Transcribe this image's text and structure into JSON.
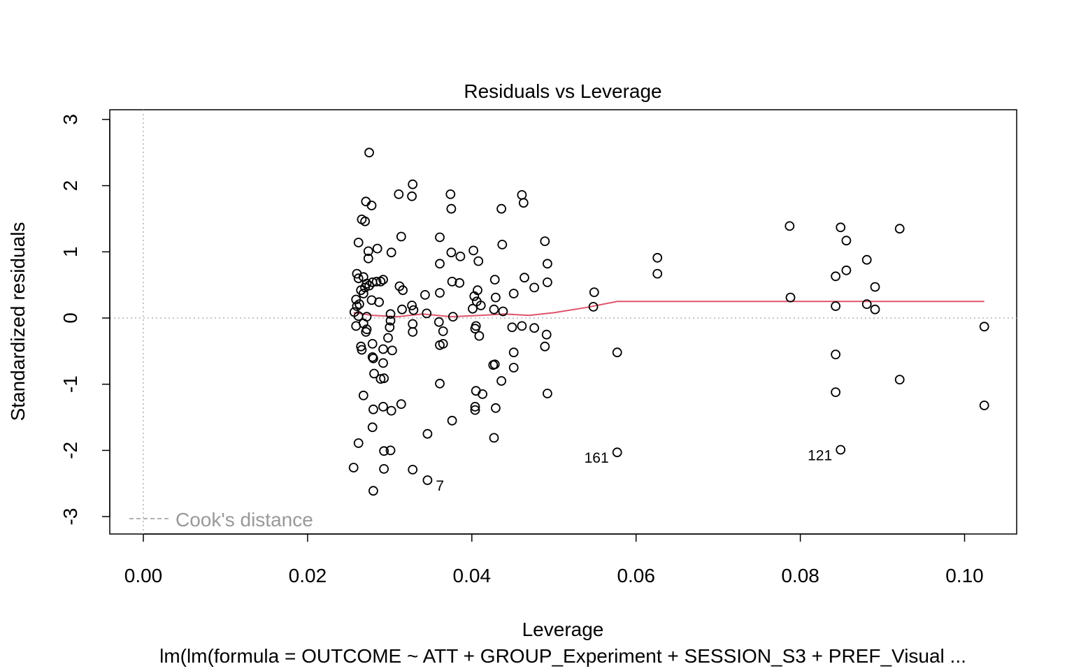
{
  "chart_data": {
    "type": "scatter",
    "title": "Residuals vs Leverage",
    "xlabel": "Leverage",
    "ylabel": "Standardized residuals",
    "subtitle": "lm(lm(formula = OUTCOME ~ ATT + GROUP_Experiment + SESSION_S3 + PREF_Visual ...",
    "xlim": [
      -0.004,
      0.106
    ],
    "ylim": [
      -3.3,
      3.1
    ],
    "x_ticks": [
      0.0,
      0.02,
      0.04,
      0.06,
      0.08,
      0.1
    ],
    "x_tick_labels": [
      "0.00",
      "0.02",
      "0.04",
      "0.06",
      "0.08",
      "0.10"
    ],
    "y_ticks": [
      -3,
      -2,
      -1,
      0,
      1,
      2,
      3
    ],
    "y_tick_labels": [
      "-3",
      "-2",
      "-1",
      "0",
      "1",
      "2",
      "3"
    ],
    "grid": false,
    "reference_lines": {
      "h": 0,
      "v": 0,
      "color": "#b3b3b3",
      "style": "dotted"
    },
    "legend": {
      "position": "bottom-left",
      "label": "Cook's distance",
      "color": "#999999",
      "style": "dashed"
    },
    "colors": {
      "points": "#000000",
      "smooth": "#DF536B"
    },
    "points": [
      [
        0.0275,
        2.5
      ],
      [
        0.0328,
        2.02
      ],
      [
        0.0311,
        1.87
      ],
      [
        0.0327,
        1.84
      ],
      [
        0.0374,
        1.87
      ],
      [
        0.0375,
        1.65
      ],
      [
        0.0461,
        1.86
      ],
      [
        0.0463,
        1.74
      ],
      [
        0.0436,
        1.65
      ],
      [
        0.0271,
        1.76
      ],
      [
        0.0278,
        1.7
      ],
      [
        0.0266,
        1.49
      ],
      [
        0.027,
        1.46
      ],
      [
        0.0314,
        1.23
      ],
      [
        0.0361,
        1.22
      ],
      [
        0.0262,
        1.14
      ],
      [
        0.0285,
        1.05
      ],
      [
        0.0274,
        1.01
      ],
      [
        0.0302,
        0.99
      ],
      [
        0.0274,
        0.9
      ],
      [
        0.0375,
        0.99
      ],
      [
        0.0386,
        0.93
      ],
      [
        0.0402,
        1.02
      ],
      [
        0.0437,
        1.11
      ],
      [
        0.0489,
        1.16
      ],
      [
        0.0408,
        0.86
      ],
      [
        0.0361,
        0.82
      ],
      [
        0.0492,
        0.82
      ],
      [
        0.026,
        0.67
      ],
      [
        0.0262,
        0.6
      ],
      [
        0.0268,
        0.62
      ],
      [
        0.0279,
        0.54
      ],
      [
        0.0272,
        0.52
      ],
      [
        0.027,
        0.46
      ],
      [
        0.0265,
        0.42
      ],
      [
        0.0275,
        0.49
      ],
      [
        0.0284,
        0.55
      ],
      [
        0.0292,
        0.58
      ],
      [
        0.0289,
        0.55
      ],
      [
        0.0312,
        0.48
      ],
      [
        0.0316,
        0.42
      ],
      [
        0.0376,
        0.55
      ],
      [
        0.0385,
        0.53
      ],
      [
        0.0428,
        0.58
      ],
      [
        0.0464,
        0.61
      ],
      [
        0.0476,
        0.46
      ],
      [
        0.0492,
        0.54
      ],
      [
        0.0343,
        0.35
      ],
      [
        0.0361,
        0.38
      ],
      [
        0.0407,
        0.42
      ],
      [
        0.0403,
        0.33
      ],
      [
        0.0429,
        0.31
      ],
      [
        0.0451,
        0.37
      ],
      [
        0.0259,
        0.28
      ],
      [
        0.0268,
        0.37
      ],
      [
        0.0278,
        0.27
      ],
      [
        0.0287,
        0.24
      ],
      [
        0.026,
        0.18
      ],
      [
        0.0263,
        0.21
      ],
      [
        0.0315,
        0.13
      ],
      [
        0.0327,
        0.19
      ],
      [
        0.0329,
        0.12
      ],
      [
        0.0401,
        0.14
      ],
      [
        0.0411,
        0.19
      ],
      [
        0.0406,
        0.25
      ],
      [
        0.0427,
        0.13
      ],
      [
        0.0438,
        0.1
      ],
      [
        0.0257,
        0.09
      ],
      [
        0.0262,
        0.03
      ],
      [
        0.0272,
        0.02
      ],
      [
        0.0301,
        0.06
      ],
      [
        0.0345,
        0.07
      ],
      [
        0.0377,
        0.02
      ],
      [
        0.0259,
        -0.12
      ],
      [
        0.0268,
        -0.08
      ],
      [
        0.0272,
        -0.17
      ],
      [
        0.0271,
        -0.21
      ],
      [
        0.0279,
        -0.39
      ],
      [
        0.03,
        -0.14
      ],
      [
        0.0301,
        -0.04
      ],
      [
        0.0328,
        -0.09
      ],
      [
        0.0328,
        -0.21
      ],
      [
        0.036,
        -0.06
      ],
      [
        0.0365,
        -0.2
      ],
      [
        0.0404,
        -0.16
      ],
      [
        0.0405,
        -0.12
      ],
      [
        0.0409,
        -0.27
      ],
      [
        0.0449,
        -0.14
      ],
      [
        0.0461,
        -0.12
      ],
      [
        0.0476,
        -0.15
      ],
      [
        0.0491,
        -0.25
      ],
      [
        0.0265,
        -0.43
      ],
      [
        0.0266,
        -0.48
      ],
      [
        0.0292,
        -0.47
      ],
      [
        0.0298,
        -0.3
      ],
      [
        0.0303,
        -0.49
      ],
      [
        0.0361,
        -0.41
      ],
      [
        0.0365,
        -0.39
      ],
      [
        0.0451,
        -0.52
      ],
      [
        0.0489,
        -0.43
      ],
      [
        0.0279,
        -0.59
      ],
      [
        0.028,
        -0.61
      ],
      [
        0.0292,
        -0.68
      ],
      [
        0.0281,
        -0.84
      ],
      [
        0.0289,
        -0.92
      ],
      [
        0.0293,
        -0.91
      ],
      [
        0.0426,
        -0.71
      ],
      [
        0.0428,
        -0.7
      ],
      [
        0.0451,
        -0.75
      ],
      [
        0.0436,
        -0.95
      ],
      [
        0.0361,
        -0.99
      ],
      [
        0.0268,
        -1.17
      ],
      [
        0.028,
        -1.38
      ],
      [
        0.0292,
        -1.34
      ],
      [
        0.0302,
        -1.4
      ],
      [
        0.0314,
        -1.3
      ],
      [
        0.0404,
        -1.34
      ],
      [
        0.0404,
        -1.39
      ],
      [
        0.0405,
        -1.1
      ],
      [
        0.0413,
        -1.15
      ],
      [
        0.0429,
        -1.36
      ],
      [
        0.0492,
        -1.14
      ],
      [
        0.0279,
        -1.65
      ],
      [
        0.0376,
        -1.55
      ],
      [
        0.0346,
        -1.75
      ],
      [
        0.0427,
        -1.81
      ],
      [
        0.0262,
        -1.89
      ],
      [
        0.0293,
        -2.01
      ],
      [
        0.0301,
        -2.0
      ],
      [
        0.0256,
        -2.26
      ],
      [
        0.0293,
        -2.28
      ],
      [
        0.0328,
        -2.29
      ],
      [
        0.028,
        -2.61
      ],
      [
        0.0346,
        -2.45
      ],
      [
        0.0549,
        0.39
      ],
      [
        0.0548,
        0.17
      ],
      [
        0.0577,
        -0.52
      ],
      [
        0.0577,
        -2.03
      ],
      [
        0.0626,
        0.91
      ],
      [
        0.0626,
        0.67
      ],
      [
        0.0787,
        1.39
      ],
      [
        0.0788,
        0.31
      ],
      [
        0.0843,
        0.63
      ],
      [
        0.0843,
        0.18
      ],
      [
        0.0843,
        -0.55
      ],
      [
        0.0843,
        -1.12
      ],
      [
        0.0849,
        1.37
      ],
      [
        0.0849,
        -1.99
      ],
      [
        0.0856,
        1.17
      ],
      [
        0.0856,
        0.72
      ],
      [
        0.0881,
        0.88
      ],
      [
        0.0881,
        0.21
      ],
      [
        0.0891,
        0.47
      ],
      [
        0.0891,
        0.13
      ],
      [
        0.0921,
        1.35
      ],
      [
        0.0921,
        -0.93
      ],
      [
        0.1024,
        -0.13
      ],
      [
        0.1024,
        -1.32
      ]
    ],
    "smooth_line": [
      [
        0.0256,
        0.08
      ],
      [
        0.028,
        0.04
      ],
      [
        0.031,
        0.02
      ],
      [
        0.034,
        0.06
      ],
      [
        0.0375,
        0.02
      ],
      [
        0.041,
        0.04
      ],
      [
        0.044,
        0.06
      ],
      [
        0.047,
        0.04
      ],
      [
        0.05,
        0.08
      ],
      [
        0.054,
        0.16
      ],
      [
        0.0577,
        0.25
      ],
      [
        0.07,
        0.25
      ],
      [
        0.09,
        0.25
      ],
      [
        0.1024,
        0.25
      ]
    ],
    "point_labels": [
      {
        "label": "161",
        "x": 0.0577,
        "y": -2.03,
        "side": "left"
      },
      {
        "label": "121",
        "x": 0.0849,
        "y": -1.99,
        "side": "left"
      },
      {
        "label": "7",
        "x": 0.0346,
        "y": -2.45,
        "side": "right"
      }
    ]
  }
}
